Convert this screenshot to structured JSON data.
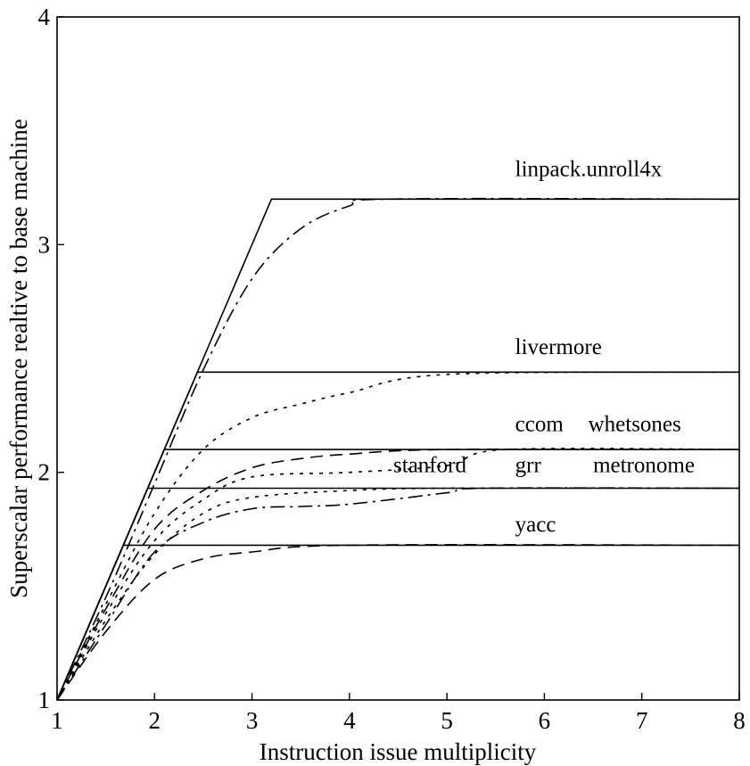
{
  "chart_data": {
    "type": "line",
    "title": "",
    "xlabel": "Instruction issue multiplicity",
    "ylabel": "Superscalar performance realtive to base machine",
    "xlim": [
      1,
      8
    ],
    "ylim": [
      1,
      4
    ],
    "xticks": [
      "1",
      "2",
      "3",
      "4",
      "5",
      "6",
      "7",
      "8"
    ],
    "yticks": [
      "1",
      "2",
      "3",
      "4"
    ],
    "grid": false,
    "ideal_limit_lines": [
      {
        "limit": 3.2,
        "points": [
          [
            1,
            1
          ],
          [
            3.2,
            3.2
          ],
          [
            8,
            3.2
          ]
        ]
      },
      {
        "limit": 2.44,
        "points": [
          [
            1,
            1
          ],
          [
            2.44,
            2.44
          ],
          [
            8,
            2.44
          ]
        ]
      },
      {
        "limit": 2.1,
        "points": [
          [
            1,
            1
          ],
          [
            2.1,
            2.1
          ],
          [
            8,
            2.1
          ]
        ]
      },
      {
        "limit": 1.93,
        "points": [
          [
            1,
            1
          ],
          [
            1.93,
            1.93
          ],
          [
            8,
            1.93
          ]
        ]
      },
      {
        "limit": 1.68,
        "points": [
          [
            1,
            1
          ],
          [
            1.68,
            1.68
          ],
          [
            8,
            1.68
          ]
        ]
      }
    ],
    "curves": [
      {
        "style": "dashdot",
        "points": [
          [
            1,
            1
          ],
          [
            1.5,
            1.45
          ],
          [
            2,
            1.95
          ],
          [
            2.5,
            2.45
          ],
          [
            3,
            2.85
          ],
          [
            3.5,
            3.07
          ],
          [
            4,
            3.17
          ],
          [
            4.4,
            3.2
          ],
          [
            8,
            3.2
          ]
        ]
      },
      {
        "style": "dotted",
        "points": [
          [
            1,
            1
          ],
          [
            1.5,
            1.42
          ],
          [
            2,
            1.82
          ],
          [
            2.5,
            2.1
          ],
          [
            3,
            2.24
          ],
          [
            3.5,
            2.3
          ],
          [
            4,
            2.35
          ],
          [
            5,
            2.43
          ],
          [
            8,
            2.44
          ]
        ]
      },
      {
        "style": "dashed",
        "points": [
          [
            1,
            1
          ],
          [
            1.5,
            1.4
          ],
          [
            2,
            1.75
          ],
          [
            2.5,
            1.92
          ],
          [
            3,
            2.02
          ],
          [
            3.5,
            2.06
          ],
          [
            4,
            2.08
          ],
          [
            5,
            2.1
          ],
          [
            8,
            2.1
          ]
        ]
      },
      {
        "style": "dotted",
        "points": [
          [
            1,
            1
          ],
          [
            1.5,
            1.38
          ],
          [
            2,
            1.7
          ],
          [
            2.5,
            1.88
          ],
          [
            3,
            1.98
          ],
          [
            4,
            2.0
          ],
          [
            5,
            2.03
          ],
          [
            5.6,
            2.1
          ],
          [
            8,
            2.1
          ]
        ]
      },
      {
        "style": "dotted",
        "points": [
          [
            1,
            1
          ],
          [
            1.5,
            1.35
          ],
          [
            2,
            1.64
          ],
          [
            2.5,
            1.82
          ],
          [
            3,
            1.89
          ],
          [
            4,
            1.92
          ],
          [
            5,
            1.93
          ],
          [
            8,
            1.93
          ]
        ]
      },
      {
        "style": "dashdot",
        "points": [
          [
            1,
            1
          ],
          [
            1.5,
            1.33
          ],
          [
            2,
            1.65
          ],
          [
            2.5,
            1.78
          ],
          [
            3,
            1.84
          ],
          [
            3.5,
            1.85
          ],
          [
            4,
            1.86
          ],
          [
            5,
            1.91
          ],
          [
            5.4,
            1.93
          ],
          [
            8,
            1.93
          ]
        ]
      },
      {
        "style": "dashed",
        "points": [
          [
            1,
            1
          ],
          [
            1.5,
            1.3
          ],
          [
            2,
            1.53
          ],
          [
            2.5,
            1.62
          ],
          [
            3,
            1.65
          ],
          [
            4,
            1.68
          ],
          [
            8,
            1.68
          ]
        ]
      }
    ],
    "annotations": [
      {
        "text": "linpack.unroll4x",
        "x": 5.7,
        "y": 3.3
      },
      {
        "text": "livermore",
        "x": 5.7,
        "y": 2.52
      },
      {
        "text": "ccom",
        "x": 5.7,
        "y": 2.18
      },
      {
        "text": "whetsones",
        "x": 6.45,
        "y": 2.18
      },
      {
        "text": "stanford",
        "x": 4.45,
        "y": 2.0
      },
      {
        "text": "grr",
        "x": 5.7,
        "y": 2.0
      },
      {
        "text": "metronome",
        "x": 6.5,
        "y": 2.0
      },
      {
        "text": "yacc",
        "x": 5.7,
        "y": 1.74
      }
    ]
  }
}
